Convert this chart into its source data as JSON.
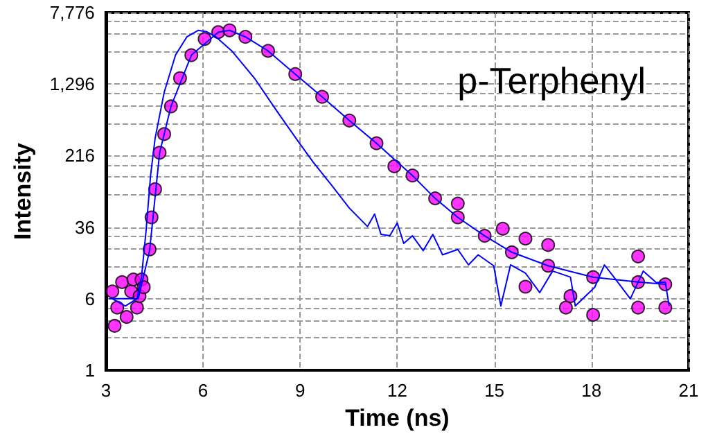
{
  "chart_data": {
    "type": "line",
    "title": "p-Terphenyl",
    "xlabel": "Time (ns)",
    "ylabel": "Intensity",
    "log": true,
    "grid": true,
    "xlim": [
      3,
      21
    ],
    "xticks": [
      3,
      6,
      9,
      12,
      15,
      18,
      21
    ],
    "ylim": [
      1,
      7776
    ],
    "yticks": [
      1,
      6,
      36,
      216,
      {
        "value": 1296,
        "label": "1,296"
      },
      {
        "value": 7776,
        "label": "7,776"
      }
    ],
    "series": [
      {
        "color": "#0000ff",
        "marker": "none",
        "x": [
          3.2,
          3.6,
          3.96,
          4.1,
          4.24,
          4.38,
          4.52,
          4.8,
          5.15,
          5.5,
          5.85,
          6.12,
          6.4,
          6.89,
          7.59,
          8.28,
          8.98,
          9.4,
          9.96,
          10.52,
          11.08,
          11.3,
          11.5,
          11.77,
          12.0,
          12.2,
          12.47,
          12.8,
          13.1,
          13.4,
          13.87,
          14.2,
          14.5,
          14.98,
          15.2,
          15.5,
          15.96,
          16.4,
          16.8,
          17.35,
          17.5,
          18.1,
          18.4,
          18.75,
          19.2,
          19.6,
          20.0,
          20.28,
          20.4
        ],
        "values": [
          6,
          5,
          6,
          10.3,
          32.6,
          131,
          332,
          1050,
          2670,
          4220,
          4970,
          4800,
          4220,
          2970,
          1500,
          660,
          294,
          184,
          104,
          58,
          36.6,
          50,
          30,
          29,
          40,
          24,
          29,
          20,
          30,
          18,
          20.6,
          14,
          18,
          13.7,
          5,
          14,
          11.4,
          7,
          12,
          10.3,
          5,
          8,
          14,
          9.7,
          6,
          12,
          9,
          9.1,
          5
        ]
      },
      {
        "type": "scatter",
        "color": "#ff00ff",
        "marker": "circle",
        "x": [
          3.2,
          3.27,
          3.35,
          3.5,
          3.64,
          3.78,
          3.85,
          3.96,
          4.04,
          4.1,
          4.17,
          4.35,
          4.41,
          4.52,
          4.66,
          4.8,
          5.01,
          5.29,
          5.64,
          6.05,
          6.47,
          6.82,
          7.31,
          8.01,
          8.85,
          9.68,
          10.52,
          11.36,
          11.91,
          12.47,
          13.17,
          13.87,
          13.87,
          14.7,
          15.26,
          15.54,
          15.96,
          15.96,
          16.66,
          16.66,
          17.21,
          17.35,
          18.05,
          18.05,
          19.44,
          19.44,
          19.44,
          20.28,
          20.28
        ],
        "values": [
          7.2,
          3.04,
          4.8,
          9.1,
          3.8,
          7.2,
          9.7,
          4.8,
          6.4,
          9.7,
          8,
          20.6,
          46,
          93,
          232,
          370,
          740,
          1500,
          2670,
          4000,
          4750,
          4970,
          4220,
          2970,
          1660,
          940,
          520,
          294,
          165,
          131,
          74,
          46,
          65,
          29,
          34.6,
          19.2,
          27,
          8.1,
          13.7,
          23,
          4.8,
          6.4,
          10.3,
          4.0,
          9.1,
          17.3,
          4.8,
          8.6,
          4.8
        ]
      },
      {
        "color": "#0000ff",
        "marker": "none",
        "x": [
          3.1,
          4.0,
          4.35,
          4.66,
          5.01,
          5.64,
          6.47,
          6.82,
          7.31,
          8.01,
          8.85,
          9.68,
          10.52,
          11.36,
          12.47,
          13.17,
          13.87,
          14.7,
          15.54,
          16.66,
          18.05,
          19.44,
          20.28
        ],
        "values": [
          6,
          6,
          20,
          232,
          740,
          2670,
          4750,
          4970,
          4220,
          2970,
          1660,
          940,
          520,
          294,
          131,
          74,
          46,
          29,
          19.2,
          13.7,
          10.3,
          9.1,
          8.6
        ]
      }
    ]
  }
}
